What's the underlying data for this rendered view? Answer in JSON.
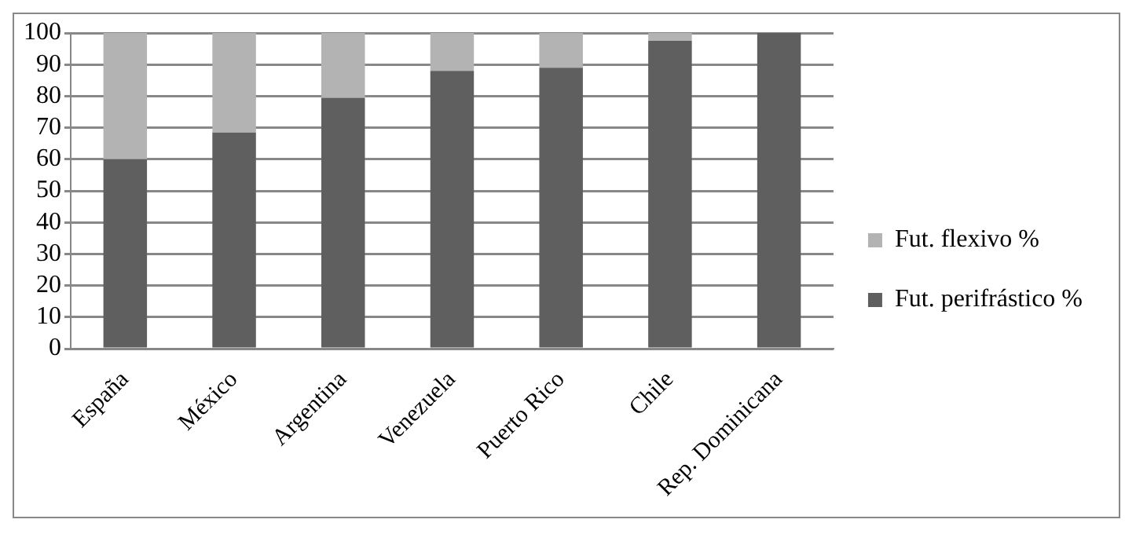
{
  "chart_data": {
    "type": "bar",
    "stacked": true,
    "categories": [
      "España",
      "México",
      "Argentina",
      "Venezuela",
      "Puerto Rico",
      "Chile",
      "Rep. Dominicana"
    ],
    "series": [
      {
        "name": "Fut. perifrástico %",
        "color": "#5f5f5f",
        "values": [
          60,
          68.5,
          79.5,
          88,
          89,
          97.5,
          100
        ]
      },
      {
        "name": "Fut. flexivo %",
        "color": "#b3b3b3",
        "values": [
          40,
          31.5,
          20.5,
          12,
          11,
          2.5,
          0
        ]
      }
    ],
    "ylim": [
      0,
      100
    ],
    "yticks": [
      0,
      10,
      20,
      30,
      40,
      50,
      60,
      70,
      80,
      90,
      100
    ],
    "grid": "y",
    "legend": "right"
  }
}
